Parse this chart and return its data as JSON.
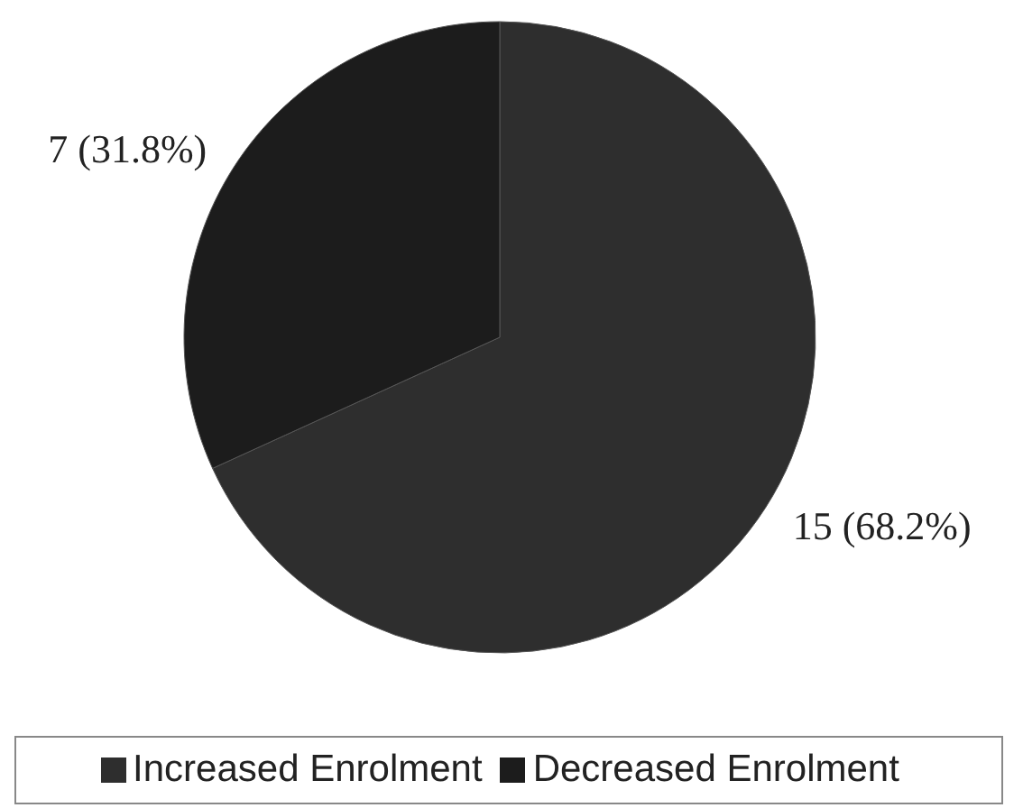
{
  "chart_data": {
    "type": "pie",
    "categories": [
      "Increased Enrolment",
      "Decreased Enrolment"
    ],
    "values": [
      15,
      7
    ],
    "colors": [
      "#2e2e2e",
      "#1c1c1c"
    ],
    "value_labels": [
      "15 (68.2%)",
      "7 (31.8%)"
    ],
    "legend": "bottom"
  }
}
